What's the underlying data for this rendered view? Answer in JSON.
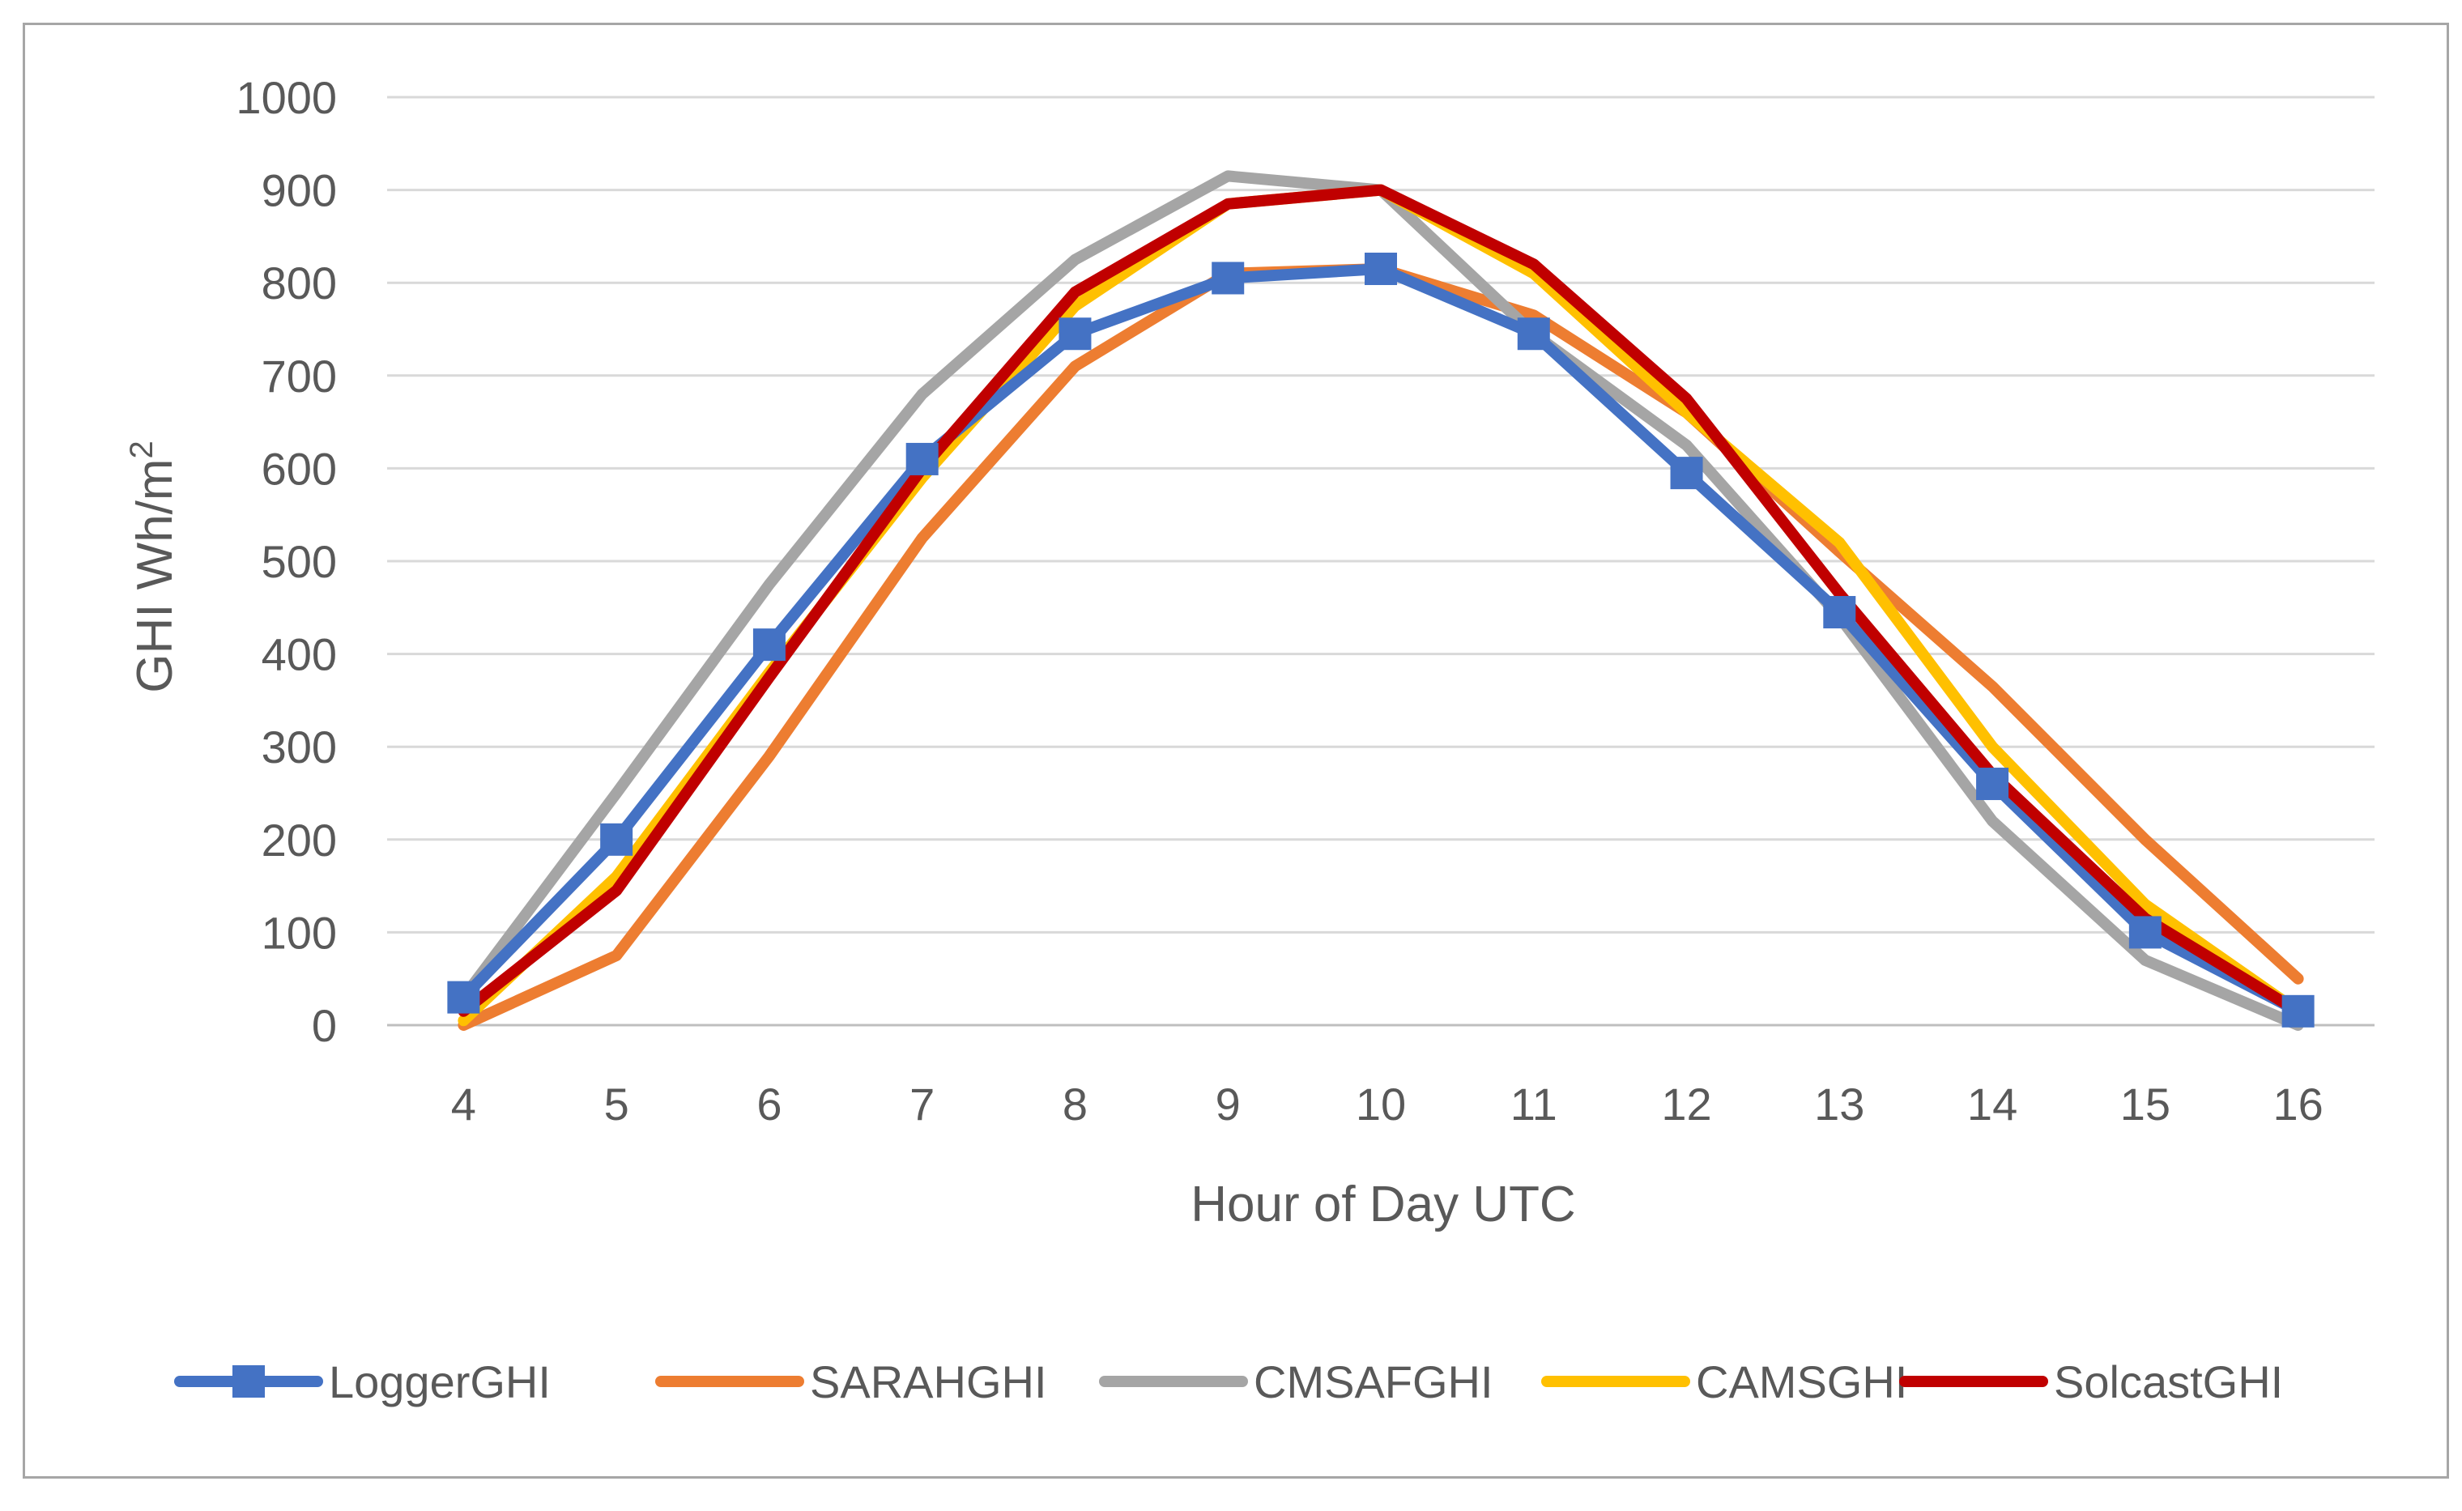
{
  "chart_data": {
    "type": "line",
    "title": "",
    "xlabel": "Hour of Day UTC",
    "ylabel": "GHI Wh/m",
    "ylabel_superscript": "2",
    "x": [
      4,
      5,
      6,
      7,
      8,
      9,
      10,
      11,
      12,
      13,
      14,
      15,
      16
    ],
    "xticks": [
      "4",
      "5",
      "6",
      "7",
      "8",
      "9",
      "10",
      "11",
      "12",
      "13",
      "14",
      "15",
      "16"
    ],
    "yticks": [
      "0",
      "100",
      "200",
      "300",
      "400",
      "500",
      "600",
      "700",
      "800",
      "900",
      "1000"
    ],
    "ylim": [
      0,
      1000
    ],
    "grid": true,
    "legend_position": "bottom",
    "series": [
      {
        "name": "SARAHGHI",
        "color": "#ED7D31",
        "marker": "none",
        "values": [
          0,
          75,
          290,
          525,
          710,
          810,
          815,
          765,
          660,
          510,
          365,
          200,
          50
        ]
      },
      {
        "name": "CMSAFGHI",
        "color": "#A5A5A5",
        "marker": "none",
        "values": [
          30,
          250,
          475,
          680,
          825,
          915,
          900,
          745,
          625,
          440,
          220,
          70,
          0
        ]
      },
      {
        "name": "CAMSGHI",
        "color": "#FFC000",
        "marker": "none",
        "values": [
          5,
          160,
          380,
          590,
          775,
          885,
          900,
          810,
          660,
          520,
          300,
          130,
          15
        ]
      },
      {
        "name": "LoggerGHI",
        "color": "#4472C4",
        "marker": "square",
        "values": [
          30,
          200,
          410,
          610,
          745,
          805,
          815,
          745,
          595,
          445,
          260,
          100,
          15
        ]
      },
      {
        "name": "SolcastGHI",
        "color": "#C00000",
        "marker": "none",
        "values": [
          15,
          145,
          375,
          600,
          790,
          885,
          900,
          820,
          675,
          465,
          270,
          115,
          15
        ]
      }
    ],
    "legend_order": [
      "LoggerGHI",
      "SARAHGHI",
      "CMSAFGHI",
      "CAMSGHI",
      "SolcastGHI"
    ]
  }
}
